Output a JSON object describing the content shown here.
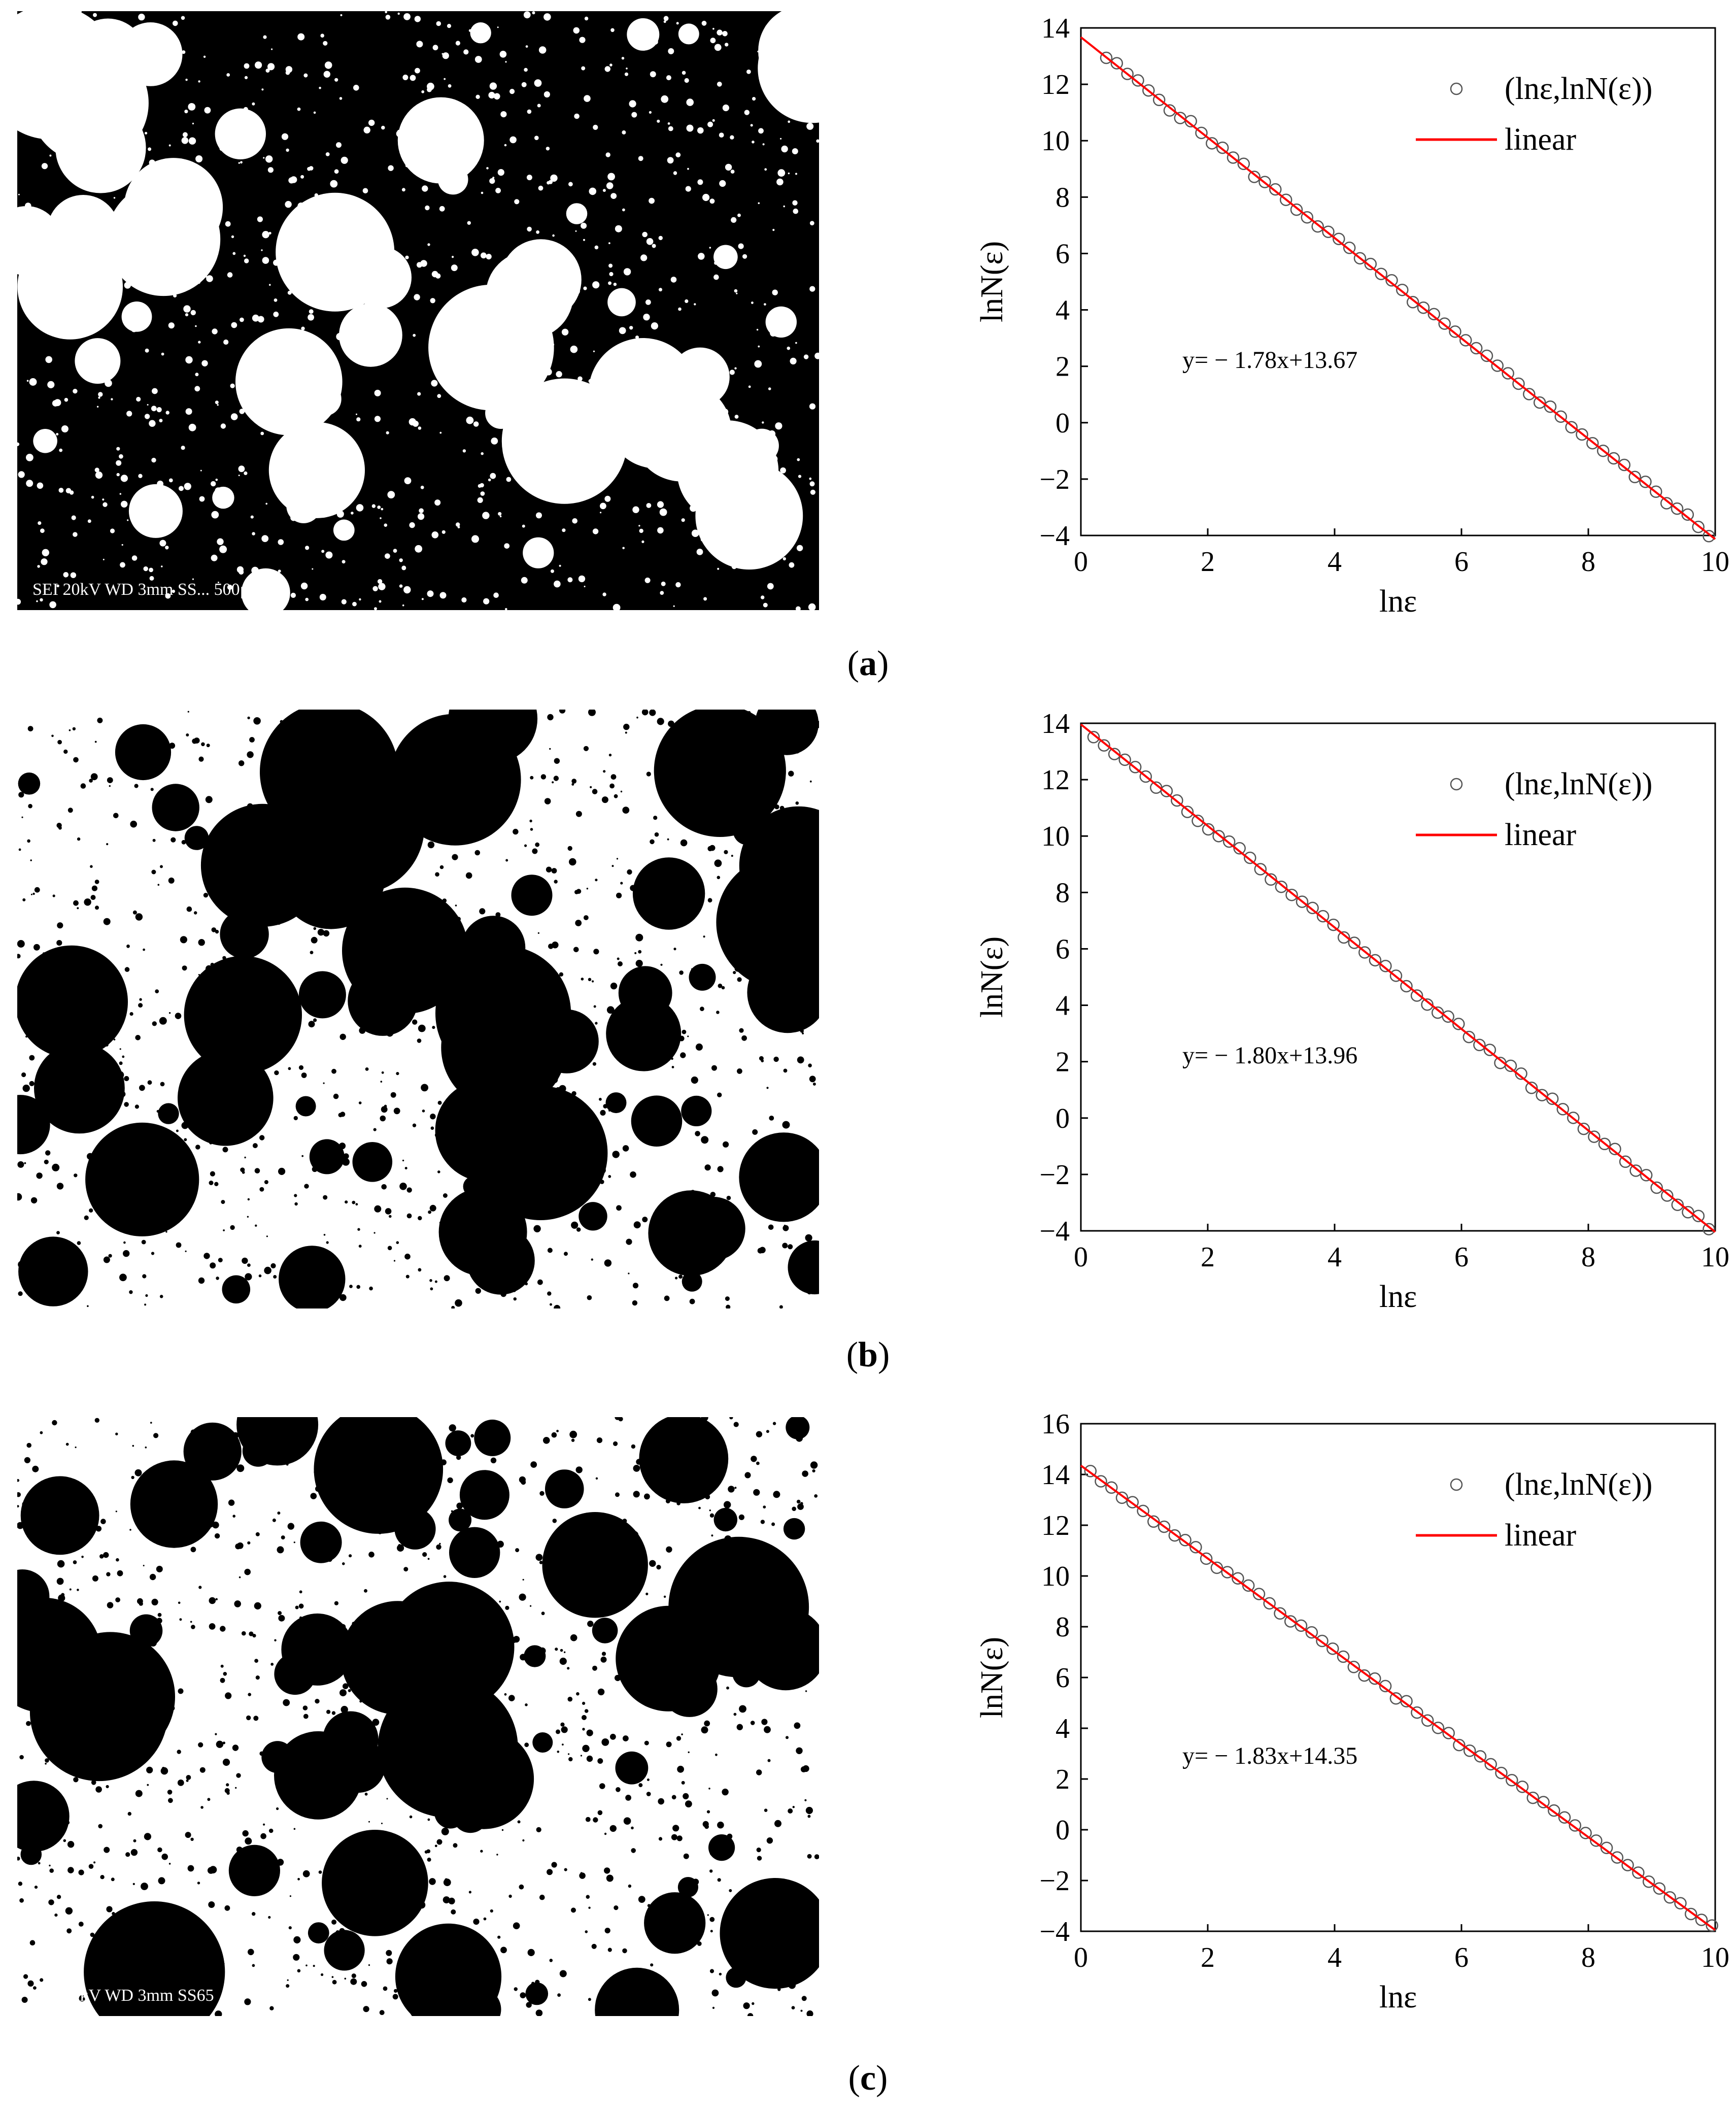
{
  "panels": [
    {
      "id": "a",
      "caption_open": "(",
      "caption_letter": "a",
      "caption_close": ")",
      "sem_label": "SEI   20kV   WD 3mm   SS...   500μm"
    },
    {
      "id": "b",
      "caption_open": "(",
      "caption_letter": "b",
      "caption_close": ")",
      "sem_label": ""
    },
    {
      "id": "c",
      "caption_open": "(",
      "caption_letter": "c",
      "caption_close": ")",
      "sem_label": "SEI   20kV   WD 3mm   SS65"
    }
  ],
  "chart_data": [
    {
      "type": "scatter",
      "title": "",
      "xlabel": "lnε",
      "ylabel": "lnN(ε)",
      "xlim": [
        0,
        10
      ],
      "ylim": [
        -4,
        14
      ],
      "xticks": [
        "0",
        "2",
        "4",
        "6",
        "8",
        "10"
      ],
      "yticks": [
        "−4",
        "−2",
        "0",
        "2",
        "4",
        "6",
        "8",
        "10",
        "12",
        "14"
      ],
      "legend_position": "top-right",
      "series": [
        {
          "name": "(lnε,lnN(ε))",
          "kind": "points",
          "slope": -1.78,
          "intercept": 13.67,
          "x_start": 0.4,
          "x_end": 9.9,
          "count": 58
        },
        {
          "name": "linear",
          "kind": "line",
          "slope": -1.78,
          "intercept": 13.67,
          "color": "#ff0000"
        }
      ],
      "annotation": "y= − 1.78x+13.67"
    },
    {
      "type": "scatter",
      "title": "",
      "xlabel": "lnε",
      "ylabel": "lnN(ε)",
      "xlim": [
        0,
        10
      ],
      "ylim": [
        -4,
        14
      ],
      "xticks": [
        "0",
        "2",
        "4",
        "6",
        "8",
        "10"
      ],
      "yticks": [
        "−4",
        "−2",
        "0",
        "2",
        "4",
        "6",
        "8",
        "10",
        "12",
        "14"
      ],
      "legend_position": "top-right",
      "series": [
        {
          "name": "(lnε,lnN(ε))",
          "kind": "points",
          "slope": -1.8,
          "intercept": 13.96,
          "x_start": 0.2,
          "x_end": 9.9,
          "count": 60
        },
        {
          "name": "linear",
          "kind": "line",
          "slope": -1.8,
          "intercept": 13.96,
          "color": "#ff0000"
        }
      ],
      "annotation": "y= − 1.80x+13.96"
    },
    {
      "type": "scatter",
      "title": "",
      "xlabel": "lnε",
      "ylabel": "lnN(ε)",
      "xlim": [
        0,
        10
      ],
      "ylim": [
        -4,
        16
      ],
      "xticks": [
        "0",
        "2",
        "4",
        "6",
        "8",
        "10"
      ],
      "yticks": [
        "−4",
        "−2",
        "0",
        "2",
        "4",
        "6",
        "8",
        "10",
        "12",
        "14",
        "16"
      ],
      "legend_position": "top-right",
      "series": [
        {
          "name": "(lnε,lnN(ε))",
          "kind": "points",
          "slope": -1.83,
          "intercept": 14.35,
          "x_start": 0.15,
          "x_end": 9.95,
          "count": 60
        },
        {
          "name": "linear",
          "kind": "line",
          "slope": -1.83,
          "intercept": 14.35,
          "color": "#ff0000"
        }
      ],
      "annotation": "y= − 1.83x+14.35"
    }
  ]
}
